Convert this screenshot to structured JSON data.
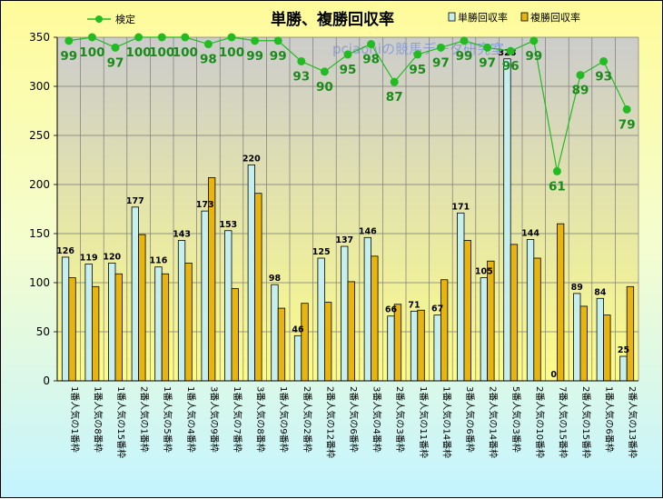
{
  "chart_data": {
    "type": "bar",
    "title": "単勝、複勝回収率",
    "watermark": "pciaoniの競馬データ研究室",
    "ylim": [
      0,
      350
    ],
    "yticks": [
      0,
      50,
      100,
      150,
      200,
      250,
      300,
      350
    ],
    "grid": true,
    "legend_position": "top",
    "categories": [
      "1番人気の1番枠",
      "1番人気の8番枠",
      "1番人気の15番枠",
      "2番人気の1番枠",
      "1番人気の5番枠",
      "1番人気の4番枠",
      "3番人気の9番枠",
      "1番人気の7番枠",
      "3番人気の8番枠",
      "1番人気の9番枠",
      "2番人気の2番枠",
      "2番人気の12番枠",
      "2番人気の6番枠",
      "3番人気の4番枠",
      "2番人気の3番枠",
      "1番人気の11番枠",
      "1番人気の14番枠",
      "3番人気の6番枠",
      "2番人気の14番枠",
      "5番人気の3番枠",
      "2番人気の10番枠",
      "7番人気の15番枠",
      "2番人気の15番枠",
      "1番人気の6番枠",
      "2番人気の13番枠"
    ],
    "series": [
      {
        "name": "単勝回収率",
        "kind": "bar",
        "color": "#c6f0f0",
        "label_values": true,
        "values": [
          126,
          119,
          120,
          177,
          116,
          143,
          173,
          153,
          220,
          98,
          46,
          125,
          137,
          146,
          66,
          71,
          67,
          171,
          105,
          328,
          144,
          0,
          89,
          84,
          25
        ]
      },
      {
        "name": "複勝回収率",
        "kind": "bar",
        "color": "#e8b410",
        "values": [
          105,
          96,
          109,
          149,
          109,
          120,
          207,
          94,
          191,
          74,
          79,
          80,
          101,
          127,
          78,
          72,
          103,
          143,
          122,
          139,
          125,
          160,
          76,
          67,
          96
        ]
      },
      {
        "name": "検定",
        "kind": "line",
        "color": "#22bb22",
        "axis_max": 100,
        "values": [
          99,
          100,
          97,
          100,
          100,
          100,
          98,
          100,
          99,
          99,
          93,
          90,
          95,
          98,
          87,
          95,
          97,
          99,
          97,
          96,
          99,
          61,
          89,
          93,
          79
        ]
      }
    ]
  }
}
